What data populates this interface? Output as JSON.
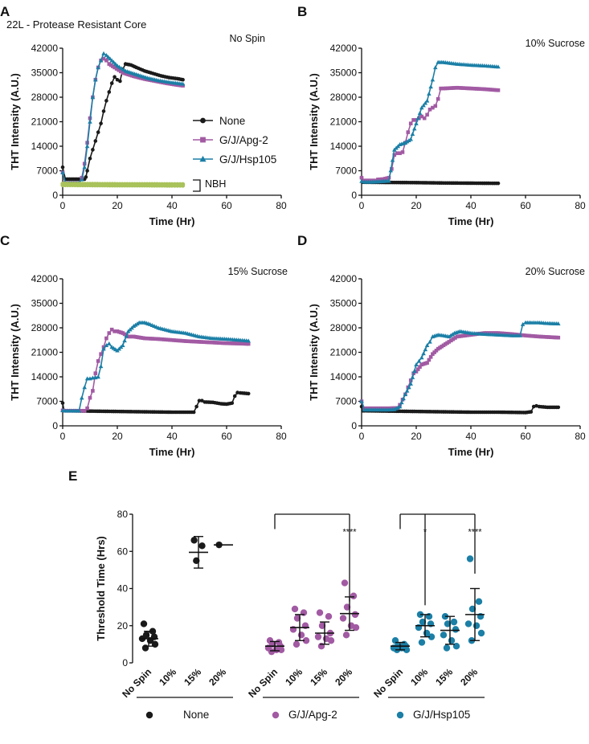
{
  "figure_texts": {
    "subtitle": "22L - Protease Resistant Core",
    "nbh_label": "NBH",
    "significance": [
      "****",
      "*",
      "****"
    ]
  },
  "colors": {
    "None": "#1a1a1a",
    "G/J/Apg-2": "#a25aa3",
    "G/J/Hsp105": "#1b7fa6",
    "NBH": "#a9c25a"
  },
  "chart_data": [
    {
      "panel": "A",
      "type": "line",
      "title": "No Spin",
      "xlabel": "Time (Hr)",
      "ylabel": "THT Intensity (A.U.)",
      "xlim": [
        0,
        80
      ],
      "ylim": [
        0,
        42000
      ],
      "xticks": [
        "0",
        "20",
        "40",
        "60",
        "80"
      ],
      "yticks": [
        "0",
        "7000",
        "14000",
        "21000",
        "28000",
        "35000",
        "42000"
      ],
      "legend": [
        "None",
        "G/J/Apg-2",
        "G/J/Hsp105"
      ],
      "series": [
        {
          "name": "None",
          "x": [
            0,
            1,
            8,
            8.5,
            9,
            10,
            11,
            12,
            13,
            14,
            15,
            16,
            17,
            18,
            19,
            20,
            21,
            22,
            23,
            25,
            27,
            30,
            33,
            36,
            39,
            42,
            44
          ],
          "y": [
            8000,
            4600,
            4600,
            5200,
            7000,
            10500,
            13000,
            15500,
            18000,
            20500,
            24000,
            27000,
            29500,
            32000,
            33800,
            33000,
            32600,
            36000,
            37500,
            37200,
            36500,
            35500,
            34800,
            34100,
            33600,
            33300,
            33000
          ]
        },
        {
          "name": "G/J/Apg-2",
          "x": [
            0,
            1,
            6,
            7,
            8,
            9,
            10,
            11,
            12,
            13,
            14,
            15,
            16,
            17,
            19,
            22,
            26,
            30,
            34,
            38,
            42,
            44
          ],
          "y": [
            6500,
            3500,
            3500,
            5000,
            9000,
            15000,
            22000,
            28000,
            33000,
            36500,
            38500,
            39000,
            38500,
            37500,
            36500,
            35000,
            34000,
            33200,
            32600,
            32000,
            31500,
            31300
          ]
        },
        {
          "name": "G/J/Hsp105",
          "x": [
            0,
            1,
            6,
            7,
            8,
            9,
            10,
            11,
            12,
            13,
            14,
            15,
            16,
            18,
            20,
            23,
            27,
            31,
            35,
            40,
            44
          ],
          "y": [
            6500,
            3500,
            3500,
            4500,
            8000,
            14000,
            21000,
            28000,
            33000,
            36500,
            38500,
            40500,
            40000,
            38500,
            37000,
            35500,
            34500,
            33500,
            32800,
            32200,
            31800
          ]
        },
        {
          "name": "NBH",
          "x": [
            0,
            10,
            20,
            30,
            40,
            44
          ],
          "y": [
            2900,
            2850,
            2800,
            2800,
            2750,
            2750
          ]
        },
        {
          "name": "NBH",
          "x": [
            0,
            10,
            20,
            30,
            40,
            44
          ],
          "y": [
            3300,
            3250,
            3200,
            3200,
            3150,
            3150
          ]
        }
      ]
    },
    {
      "panel": "B",
      "type": "line",
      "title": "10% Sucrose",
      "xlabel": "Time (Hr)",
      "ylabel": "THT Intensity (A.U.)",
      "xlim": [
        0,
        80
      ],
      "ylim": [
        0,
        42000
      ],
      "xticks": [
        "0",
        "20",
        "40",
        "60",
        "80"
      ],
      "yticks": [
        "0",
        "7000",
        "14000",
        "21000",
        "28000",
        "35000",
        "42000"
      ],
      "series": [
        {
          "name": "None",
          "x": [
            0,
            0.5,
            1,
            10,
            20,
            30,
            40,
            50
          ],
          "y": [
            5000,
            3700,
            3700,
            3650,
            3600,
            3500,
            3450,
            3400
          ]
        },
        {
          "name": "G/J/Apg-2",
          "x": [
            0,
            1,
            5,
            6,
            8,
            10,
            11,
            12,
            13,
            14,
            15,
            16,
            17,
            18,
            19,
            20,
            21,
            22,
            23,
            24,
            25,
            26,
            27,
            28,
            29,
            30,
            35,
            40,
            45,
            50
          ],
          "y": [
            5000,
            4200,
            4200,
            4500,
            4600,
            5000,
            7500,
            11500,
            12000,
            12000,
            12300,
            15000,
            18000,
            20500,
            21500,
            21500,
            22000,
            22500,
            22000,
            23000,
            24500,
            25000,
            25500,
            27500,
            30500,
            30500,
            30700,
            30500,
            30300,
            30000
          ]
        },
        {
          "name": "G/J/Hsp105",
          "x": [
            0,
            1,
            4,
            6,
            8,
            10,
            12,
            14,
            16,
            18,
            20,
            22,
            24,
            26,
            27,
            28,
            30,
            35,
            40,
            45,
            50
          ],
          "y": [
            4000,
            3800,
            3800,
            3900,
            4000,
            4100,
            13000,
            14500,
            15000,
            16000,
            20500,
            25000,
            27000,
            33000,
            36500,
            38000,
            38000,
            37500,
            37200,
            37000,
            36700
          ]
        }
      ]
    },
    {
      "panel": "C",
      "type": "line",
      "title": "15% Sucrose",
      "xlabel": "Time (Hr)",
      "ylabel": "THT Intensity (A.U.)",
      "xlim": [
        0,
        80
      ],
      "ylim": [
        0,
        42000
      ],
      "xticks": [
        "0",
        "20",
        "40",
        "60",
        "80"
      ],
      "yticks": [
        "0",
        "7000",
        "14000",
        "21000",
        "28000",
        "35000",
        "42000"
      ],
      "series": [
        {
          "name": "None",
          "x": [
            0,
            0.5,
            1,
            10,
            20,
            30,
            40,
            48,
            49,
            50,
            51,
            52,
            55,
            58,
            60,
            62,
            63,
            64,
            65,
            68
          ],
          "y": [
            6500,
            4400,
            4300,
            4200,
            4100,
            4000,
            3900,
            3900,
            5500,
            7200,
            7200,
            6800,
            6700,
            6300,
            6200,
            6500,
            8500,
            9500,
            9400,
            9200
          ]
        },
        {
          "name": "G/J/Apg-2",
          "x": [
            0,
            1,
            8,
            9,
            10,
            11,
            12,
            13,
            14,
            15,
            16,
            17,
            18,
            19,
            20,
            22,
            24,
            26,
            30,
            35,
            40,
            45,
            50,
            55,
            60,
            65,
            68
          ],
          "y": [
            4400,
            4300,
            4300,
            5000,
            8000,
            10000,
            15000,
            18500,
            20500,
            22500,
            25000,
            26500,
            27500,
            27000,
            27000,
            26500,
            25500,
            25500,
            25000,
            24800,
            24500,
            24200,
            24000,
            23800,
            23600,
            23500,
            23400
          ]
        },
        {
          "name": "G/J/Hsp105",
          "x": [
            0,
            1,
            6,
            7,
            8,
            9,
            10,
            11,
            12,
            13,
            14,
            15,
            16,
            17,
            18,
            20,
            22,
            24,
            26,
            28,
            30,
            32,
            35,
            40,
            45,
            50,
            55,
            60,
            65,
            68
          ],
          "y": [
            4400,
            4300,
            4300,
            8000,
            11000,
            13500,
            13500,
            13700,
            13800,
            14000,
            17000,
            22000,
            23000,
            23500,
            22500,
            21500,
            23000,
            27000,
            28500,
            29500,
            29500,
            29000,
            28000,
            27000,
            26500,
            25500,
            25000,
            24800,
            24500,
            24300
          ]
        }
      ]
    },
    {
      "panel": "D",
      "type": "line",
      "title": "20% Sucrose",
      "xlabel": "Time (Hr)",
      "ylabel": "THT Intensity (A.U.)",
      "xlim": [
        0,
        80
      ],
      "ylim": [
        0,
        42000
      ],
      "xticks": [
        "0",
        "20",
        "40",
        "60",
        "80"
      ],
      "yticks": [
        "0",
        "7000",
        "14000",
        "21000",
        "28000",
        "35000",
        "42000"
      ],
      "series": [
        {
          "name": "None",
          "x": [
            0,
            0.5,
            1,
            10,
            20,
            30,
            40,
            50,
            60,
            62,
            63,
            64,
            65,
            68,
            72
          ],
          "y": [
            5500,
            4300,
            4300,
            4200,
            4100,
            4000,
            3900,
            3900,
            3800,
            4000,
            5500,
            5700,
            5500,
            5300,
            5300
          ]
        },
        {
          "name": "G/J/Apg-2",
          "x": [
            0,
            1,
            10,
            13,
            14,
            15,
            16,
            17,
            18,
            19,
            20,
            22,
            24,
            26,
            28,
            30,
            32,
            35,
            40,
            45,
            50,
            55,
            60,
            65,
            72
          ],
          "y": [
            7000,
            5000,
            5000,
            5100,
            6000,
            7500,
            9000,
            11000,
            13000,
            15000,
            15500,
            17500,
            18000,
            20500,
            22000,
            23000,
            24000,
            25500,
            26000,
            26500,
            26500,
            26200,
            25800,
            25500,
            25200
          ]
        },
        {
          "name": "G/J/Hsp105",
          "x": [
            0,
            1,
            10,
            12,
            14,
            16,
            18,
            20,
            21,
            22,
            24,
            25,
            26,
            28,
            30,
            32,
            34,
            36,
            40,
            45,
            50,
            55,
            58,
            59,
            60,
            62,
            65,
            68,
            72
          ],
          "y": [
            7000,
            4600,
            4600,
            4700,
            5500,
            9000,
            12000,
            17500,
            18500,
            19500,
            23000,
            24000,
            25500,
            26000,
            25800,
            25500,
            26500,
            27000,
            26500,
            26200,
            26000,
            25800,
            25800,
            29000,
            29500,
            29500,
            29500,
            29300,
            29200
          ]
        }
      ]
    },
    {
      "panel": "E",
      "type": "scatter",
      "ylabel": "Threshold Time (Hrs)",
      "ylim": [
        0,
        80
      ],
      "yticks": [
        "0",
        "20",
        "40",
        "60",
        "80"
      ],
      "categories": [
        "No Spin",
        "10%",
        "15%",
        "20%"
      ],
      "legend": [
        "None",
        "G/J/Apg-2",
        "G/J/Hsp105"
      ],
      "groups": [
        {
          "name": "None",
          "cats": [
            {
              "label": "No Spin",
              "points": [
                21,
                17,
                15,
                14,
                13,
                12,
                10,
                8
              ],
              "mean": 13,
              "sd": 4
            },
            {
              "label": "10%",
              "points": []
            },
            {
              "label": "15%",
              "points": [
                66,
                63,
                55
              ],
              "mean": 59.5,
              "sd": 8.5
            },
            {
              "label": "20%",
              "points": [
                63.5
              ],
              "mean": 63.5,
              "sd": 0
            }
          ]
        },
        {
          "name": "G/J/Apg-2",
          "cats": [
            {
              "label": "No Spin",
              "points": [
                12,
                11,
                10,
                9,
                8,
                7,
                7,
                6
              ],
              "mean": 9,
              "sd": 2.5
            },
            {
              "label": "10%",
              "points": [
                29,
                27,
                24,
                20,
                18,
                15,
                12,
                10
              ],
              "mean": 19,
              "sd": 7
            },
            {
              "label": "15%",
              "points": [
                27,
                25,
                20,
                16,
                14,
                13,
                12,
                9
              ],
              "mean": 16,
              "sd": 6
            },
            {
              "label": "20%",
              "points": [
                43,
                36,
                30,
                26,
                24,
                20,
                19,
                15
              ],
              "mean": 26.5,
              "sd": 9
            }
          ]
        },
        {
          "name": "G/J/Hsp105",
          "cats": [
            {
              "label": "No Spin",
              "points": [
                12,
                10,
                9,
                9,
                8,
                8,
                7,
                7
              ],
              "mean": 9,
              "sd": 2
            },
            {
              "label": "10%",
              "points": [
                26,
                25,
                22,
                21,
                19,
                16,
                14,
                11
              ],
              "mean": 20,
              "sd": 6
            },
            {
              "label": "15%",
              "points": [
                25,
                22,
                21,
                18,
                15,
                12,
                9,
                8
              ],
              "mean": 17.5,
              "sd": 7.5
            },
            {
              "label": "20%",
              "points": [
                56,
                33,
                29,
                25,
                21,
                20,
                16,
                12
              ],
              "mean": 26,
              "sd": 14
            }
          ]
        }
      ],
      "significance": [
        {
          "from": "G/J/Apg-2 No Spin",
          "to": "G/J/Apg-2 20%",
          "label": "****"
        },
        {
          "from": "G/J/Hsp105 No Spin",
          "to": "G/J/Hsp105 10%",
          "label": "*"
        },
        {
          "from": "G/J/Hsp105 No Spin",
          "to": "G/J/Hsp105 20%",
          "label": "****"
        }
      ]
    }
  ]
}
